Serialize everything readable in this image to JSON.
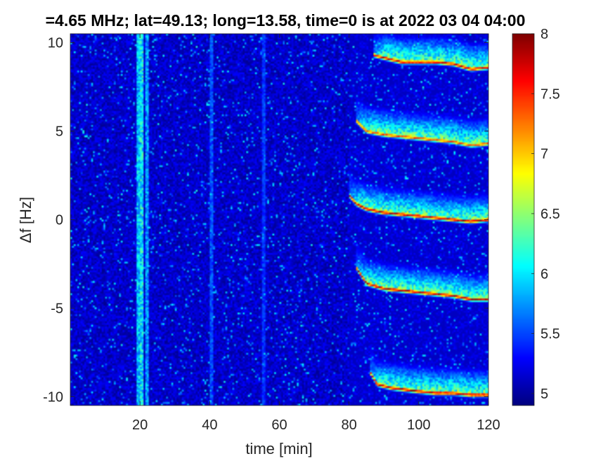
{
  "chart_data": {
    "type": "heatmap",
    "title": "=4.65 MHz;  lat=49.13; long=13.58, time=0 is at 2022 03 04 04:00",
    "xlabel": "time [min]",
    "ylabel": "Δf [Hz]",
    "xlim": [
      0,
      120
    ],
    "ylim": [
      -10.5,
      10.5
    ],
    "xticks": [
      20,
      40,
      60,
      80,
      100,
      120
    ],
    "yticks": [
      10,
      5,
      0,
      -5,
      -10
    ],
    "colorbar": {
      "range": [
        4.9,
        8.0
      ],
      "ticks": [
        "8",
        "7.5",
        "7",
        "6.5",
        "6",
        "5.5",
        "5"
      ],
      "tick_values": [
        8,
        7.5,
        7,
        6.5,
        6,
        5.5,
        5
      ],
      "colormap": "jet"
    },
    "background_level": 5.1,
    "vertical_bright_columns": [
      {
        "x": 19.5,
        "level": 6.2
      },
      {
        "x": 20.5,
        "level": 6.4
      },
      {
        "x": 22.0,
        "level": 6.0
      },
      {
        "x": 40.5,
        "level": 5.7
      },
      {
        "x": 55.5,
        "level": 5.6
      }
    ],
    "series": [
      {
        "band_offset": 10,
        "x_start": 87,
        "points": [
          [
            87,
            9.3
          ],
          [
            95,
            8.9
          ],
          [
            100,
            8.9
          ],
          [
            105,
            8.9
          ],
          [
            110,
            8.8
          ],
          [
            115,
            8.5
          ],
          [
            120,
            8.6
          ]
        ],
        "peak_level": 7.9
      },
      {
        "band_offset": 5,
        "x_start": 82,
        "points": [
          [
            82,
            5.6
          ],
          [
            85,
            5.0
          ],
          [
            90,
            4.8
          ],
          [
            95,
            4.7
          ],
          [
            100,
            4.6
          ],
          [
            105,
            4.5
          ],
          [
            110,
            4.4
          ],
          [
            115,
            4.2
          ],
          [
            120,
            4.3
          ]
        ],
        "peak_level": 7.6
      },
      {
        "band_offset": 0,
        "x_start": 80,
        "points": [
          [
            80,
            1.4
          ],
          [
            82,
            0.9
          ],
          [
            85,
            0.6
          ],
          [
            90,
            0.4
          ],
          [
            95,
            0.3
          ],
          [
            100,
            0.2
          ],
          [
            105,
            0.1
          ],
          [
            110,
            0.0
          ],
          [
            115,
            -0.1
          ],
          [
            120,
            0.0
          ]
        ],
        "peak_level": 8.0
      },
      {
        "band_offset": -5,
        "x_start": 82,
        "points": [
          [
            82,
            -2.7
          ],
          [
            85,
            -3.6
          ],
          [
            90,
            -3.9
          ],
          [
            95,
            -4.0
          ],
          [
            100,
            -4.1
          ],
          [
            105,
            -4.2
          ],
          [
            110,
            -4.3
          ],
          [
            115,
            -4.5
          ],
          [
            120,
            -4.5
          ]
        ],
        "peak_level": 8.0
      },
      {
        "band_offset": -10,
        "x_start": 86,
        "points": [
          [
            86,
            -8.6
          ],
          [
            88,
            -9.3
          ],
          [
            92,
            -9.5
          ],
          [
            96,
            -9.6
          ],
          [
            100,
            -9.7
          ],
          [
            105,
            -9.8
          ],
          [
            110,
            -9.8
          ],
          [
            115,
            -9.9
          ],
          [
            120,
            -9.9
          ]
        ],
        "peak_level": 8.0
      }
    ]
  }
}
